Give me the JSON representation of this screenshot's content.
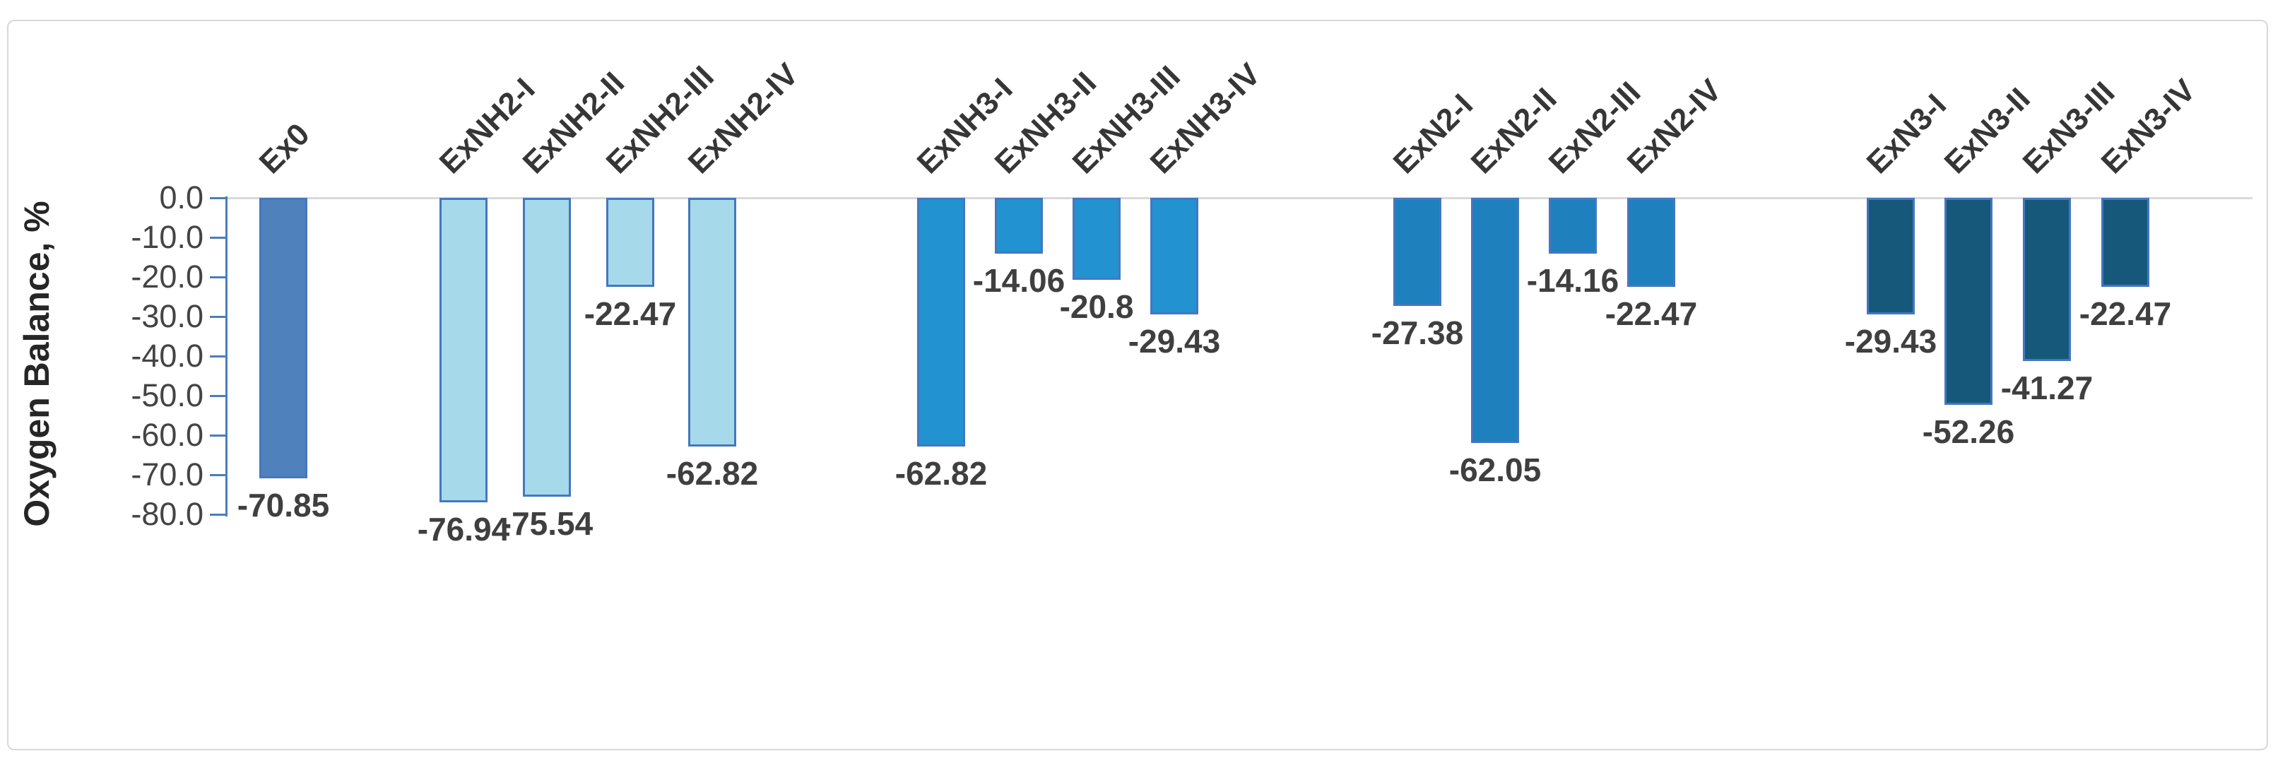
{
  "chart_data": {
    "type": "bar",
    "title": "",
    "xlabel": "",
    "ylabel": "Oxygen Balance, %",
    "ylim": [
      -80,
      0
    ],
    "ytick_labels": [
      "0.0",
      "-10.0",
      "-20.0",
      "-30.0",
      "-40.0",
      "-50.0",
      "-60.0",
      "-70.0",
      "-80.0"
    ],
    "grid": "zero-baseline-only",
    "legend": "none",
    "bar_value_labels_position": "outside-end-below",
    "category_label_rotation_deg": 45,
    "colors": {
      "bar_border": "#4577be",
      "axis": "#4a7ebd",
      "gridline": "#d9d9d9",
      "tick_text": "#444444",
      "value_text": "#3f3f3f",
      "category_text": "#363636",
      "panel_border": "#d8d8d8"
    },
    "groups": [
      {
        "name": "Ex0",
        "fill": "#4f81bd",
        "bars": [
          {
            "category": "Ex0",
            "value": -70.85
          }
        ]
      },
      {
        "name": "ExNH2",
        "fill": "#a6d9ea",
        "bars": [
          {
            "category": "ExNH2-I",
            "value": -76.94
          },
          {
            "category": "ExNH2-II",
            "value": -75.54
          },
          {
            "category": "ExNH2-III",
            "value": -22.47
          },
          {
            "category": "ExNH2-IV",
            "value": -62.82
          }
        ]
      },
      {
        "name": "ExNH3",
        "fill": "#2292d1",
        "bars": [
          {
            "category": "ExNH3-I",
            "value": -62.82
          },
          {
            "category": "ExNH3-II",
            "value": -14.06
          },
          {
            "category": "ExNH3-III",
            "value": -20.8
          },
          {
            "category": "ExNH3-IV",
            "value": -29.43
          }
        ]
      },
      {
        "name": "ExN2",
        "fill": "#1f80be",
        "bars": [
          {
            "category": "ExN2-I",
            "value": -27.38
          },
          {
            "category": "ExN2-II",
            "value": -62.05
          },
          {
            "category": "ExN2-III",
            "value": -14.16
          },
          {
            "category": "ExN2-IV",
            "value": -22.47
          }
        ]
      },
      {
        "name": "ExN3",
        "fill": "#16587a",
        "bars": [
          {
            "category": "ExN3-I",
            "value": -29.43
          },
          {
            "category": "ExN3-II",
            "value": -52.26
          },
          {
            "category": "ExN3-III",
            "value": -41.27
          },
          {
            "category": "ExN3-IV",
            "value": -22.47
          }
        ]
      }
    ]
  }
}
